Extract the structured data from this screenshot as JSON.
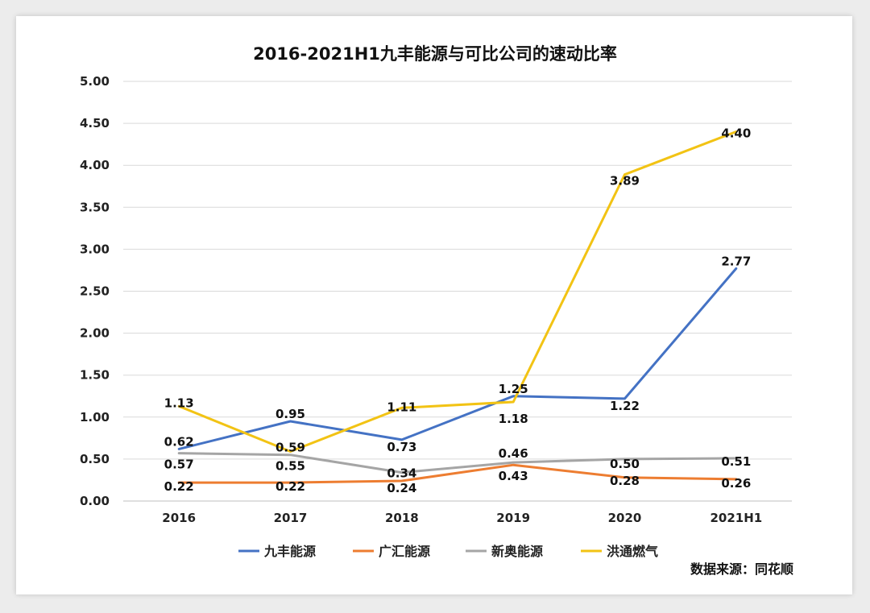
{
  "chart_data": {
    "type": "line",
    "title": "2016-2021H1九丰能源与可比公司的速动比率",
    "categories": [
      "2016",
      "2017",
      "2018",
      "2019",
      "2020",
      "2021H1"
    ],
    "y_ticks": [
      "0.00",
      "0.50",
      "1.00",
      "1.50",
      "2.00",
      "2.50",
      "3.00",
      "3.50",
      "4.00",
      "4.50",
      "5.00"
    ],
    "ylim": [
      0,
      5
    ],
    "grid": true,
    "legend_position": "bottom",
    "series": [
      {
        "name": "九丰能源",
        "color": "#4472c4",
        "values": [
          0.62,
          0.95,
          0.73,
          1.25,
          1.22,
          2.77
        ],
        "labels": [
          "0.62",
          "0.95",
          "0.73",
          "1.25",
          "1.22",
          "2.77"
        ]
      },
      {
        "name": "广汇能源",
        "color": "#ed7d31",
        "values": [
          0.22,
          0.22,
          0.24,
          0.43,
          0.28,
          0.26
        ],
        "labels": [
          "0.22",
          "0.22",
          "0.24",
          "0.43",
          "0.28",
          "0.26"
        ]
      },
      {
        "name": "新奥能源",
        "color": "#a5a5a5",
        "values": [
          0.57,
          0.55,
          0.34,
          0.46,
          0.5,
          0.51
        ],
        "labels": [
          "0.57",
          "0.55",
          "0.34",
          "0.46",
          "0.50",
          "0.51"
        ]
      },
      {
        "name": "洪通燃气",
        "color": "#f2c314",
        "values": [
          1.13,
          0.59,
          1.11,
          1.18,
          3.89,
          4.4
        ],
        "labels": [
          "1.13",
          "0.59",
          "1.11",
          "1.18",
          "3.89",
          "4.40"
        ]
      }
    ],
    "source_note": "数据来源：同花顺"
  }
}
